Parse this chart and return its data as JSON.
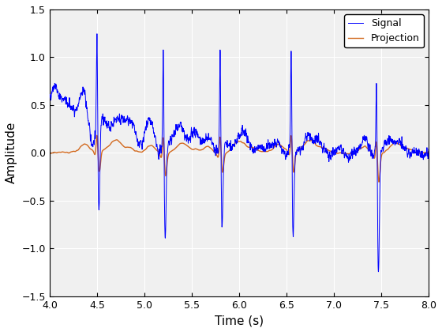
{
  "title": "",
  "xlabel": "Time (s)",
  "ylabel": "Amplitude",
  "xlim": [
    4,
    8
  ],
  "ylim": [
    -1.5,
    1.5
  ],
  "xticks": [
    4,
    4.5,
    5,
    5.5,
    6,
    6.5,
    7,
    7.5,
    8
  ],
  "yticks": [
    -1.5,
    -1.0,
    -0.5,
    0.0,
    0.5,
    1.0,
    1.5
  ],
  "signal_color": "#0000FF",
  "projection_color": "#D2691E",
  "legend_labels": [
    "Signal",
    "Projection"
  ],
  "spike_times": [
    4.5,
    5.2,
    5.8,
    6.55,
    7.45
  ],
  "spike_heights": [
    1.12,
    1.1,
    1.1,
    1.1,
    0.93
  ],
  "spike_depths": [
    -0.9,
    -1.0,
    -0.82,
    -0.93,
    -1.22
  ],
  "seed": 42,
  "fs": 1000,
  "t_start": 4.0,
  "t_end": 8.0
}
